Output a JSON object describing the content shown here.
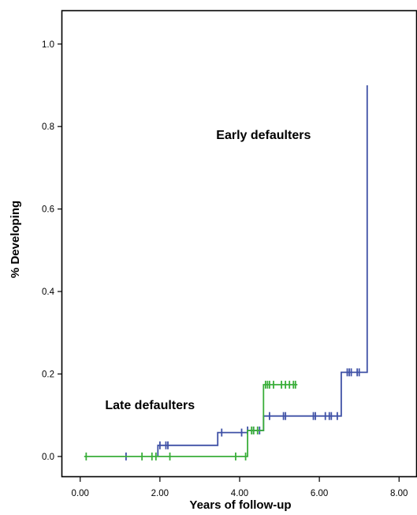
{
  "chart_data": {
    "type": "line",
    "subtype": "kaplan-meier step curves",
    "title": "",
    "xlabel": "Years of follow-up",
    "ylabel": "% Developing",
    "xlim": [
      -0.45,
      8.45
    ],
    "ylim": [
      -0.05,
      1.08
    ],
    "xticks": [
      0,
      2,
      4,
      6,
      8
    ],
    "xtick_labels": [
      "0.00",
      "2.00",
      "4.00",
      "6.00",
      "8.00"
    ],
    "yticks": [
      0,
      0.2,
      0.4,
      0.6,
      0.8,
      1.0
    ],
    "ytick_labels": [
      "0.0",
      "0.2",
      "0.4",
      "0.6",
      "0.8",
      "1.0"
    ],
    "grid": false,
    "legend": "none",
    "annotations": [
      {
        "text": "Early defaulters",
        "x": 4.6,
        "y": 0.77
      },
      {
        "text": "Late defaulters",
        "x": 1.75,
        "y": 0.115
      }
    ],
    "series": [
      {
        "color": "#3f51a6",
        "steps": [
          [
            1.95,
            0.0
          ],
          [
            1.95,
            0.027
          ],
          [
            3.45,
            0.027
          ],
          [
            3.45,
            0.058
          ],
          [
            4.2,
            0.058
          ],
          [
            4.2,
            0.063
          ],
          [
            4.6,
            0.063
          ],
          [
            4.6,
            0.098
          ],
          [
            6.55,
            0.098
          ],
          [
            6.55,
            0.204
          ],
          [
            7.2,
            0.204
          ],
          [
            7.2,
            0.9
          ]
        ],
        "censored": [
          [
            1.15,
            0.0
          ],
          [
            2.0,
            0.027
          ],
          [
            2.15,
            0.027
          ],
          [
            2.2,
            0.027
          ],
          [
            3.55,
            0.058
          ],
          [
            4.05,
            0.058
          ],
          [
            4.2,
            0.063
          ],
          [
            4.35,
            0.063
          ],
          [
            4.5,
            0.063
          ],
          [
            4.75,
            0.098
          ],
          [
            5.1,
            0.098
          ],
          [
            5.15,
            0.098
          ],
          [
            5.85,
            0.098
          ],
          [
            5.9,
            0.098
          ],
          [
            6.15,
            0.098
          ],
          [
            6.25,
            0.098
          ],
          [
            6.3,
            0.098
          ],
          [
            6.45,
            0.098
          ],
          [
            6.7,
            0.204
          ],
          [
            6.75,
            0.204
          ],
          [
            6.8,
            0.204
          ],
          [
            6.95,
            0.204
          ],
          [
            7.0,
            0.204
          ]
        ]
      },
      {
        "color": "#3aae3a",
        "steps": [
          [
            0.1,
            0.0
          ],
          [
            4.2,
            0.0
          ],
          [
            4.2,
            0.063
          ],
          [
            4.6,
            0.063
          ],
          [
            4.6,
            0.174
          ],
          [
            5.45,
            0.174
          ]
        ],
        "censored": [
          [
            0.15,
            0.0
          ],
          [
            1.55,
            0.0
          ],
          [
            1.8,
            0.0
          ],
          [
            1.9,
            0.0
          ],
          [
            2.25,
            0.0
          ],
          [
            3.9,
            0.0
          ],
          [
            4.15,
            0.0
          ],
          [
            4.3,
            0.063
          ],
          [
            4.35,
            0.063
          ],
          [
            4.45,
            0.063
          ],
          [
            4.65,
            0.174
          ],
          [
            4.7,
            0.174
          ],
          [
            4.75,
            0.174
          ],
          [
            4.85,
            0.174
          ],
          [
            5.05,
            0.174
          ],
          [
            5.15,
            0.174
          ],
          [
            5.25,
            0.174
          ],
          [
            5.35,
            0.174
          ],
          [
            5.4,
            0.174
          ]
        ]
      }
    ]
  }
}
